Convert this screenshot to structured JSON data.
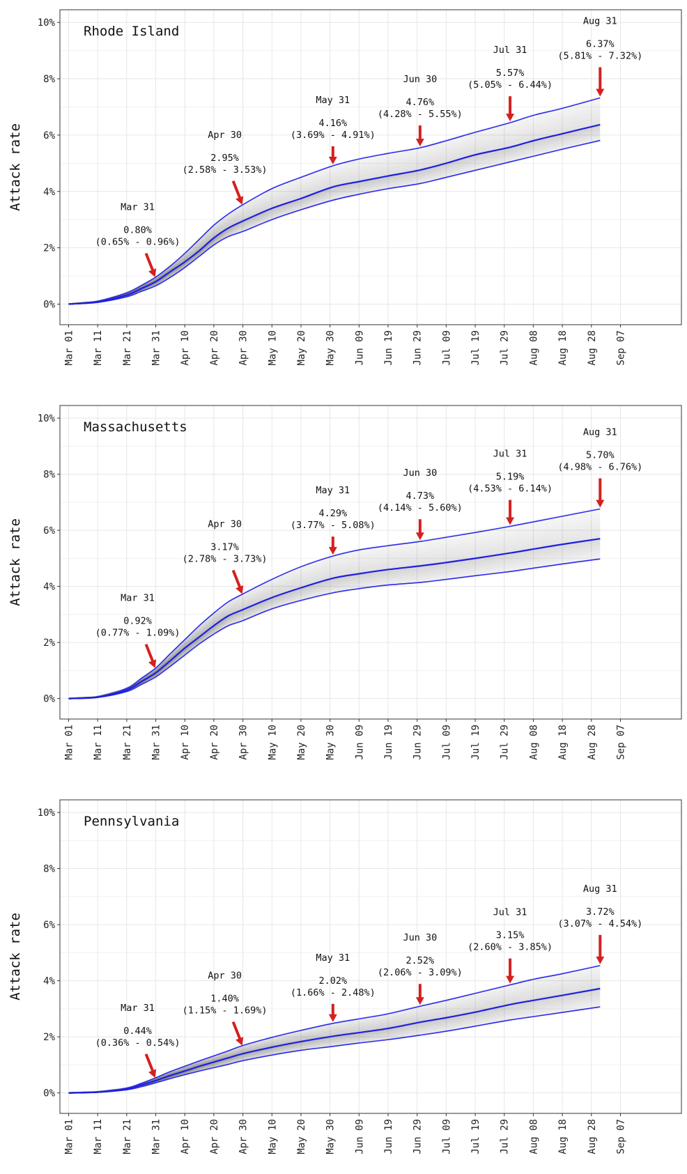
{
  "chart_data": [
    {
      "type": "line",
      "title": "Rhode Island",
      "ylabel": "Attack rate",
      "ylim": [
        0,
        10
      ],
      "y_ticks": [
        "0%",
        "2%",
        "4%",
        "6%",
        "8%",
        "10%"
      ],
      "x_ticks": [
        "Mar 01",
        "Mar 11",
        "Mar 21",
        "Mar 31",
        "Apr 10",
        "Apr 20",
        "Apr 30",
        "May 10",
        "May 20",
        "May 30",
        "Jun 09",
        "Jun 19",
        "Jun 29",
        "Jul 09",
        "Jul 19",
        "Jul 29",
        "Aug 08",
        "Aug 18",
        "Aug 28",
        "Sep 07"
      ],
      "x_days": [
        0,
        10,
        20,
        30,
        40,
        50,
        60,
        70,
        80,
        90,
        100,
        110,
        120,
        130,
        140,
        150,
        160,
        170,
        180,
        190
      ],
      "xlim": [
        -3,
        211
      ],
      "grid": true,
      "series": [
        {
          "x": [
            0,
            10,
            20,
            25,
            30,
            35,
            40,
            45,
            50,
            55,
            60,
            70,
            80,
            91,
            100,
            110,
            121,
            130,
            140,
            152,
            160,
            170,
            183
          ],
          "values": [
            0,
            0.08,
            0.32,
            0.55,
            0.8,
            1.15,
            1.5,
            1.9,
            2.35,
            2.7,
            2.95,
            3.4,
            3.75,
            4.16,
            4.35,
            4.55,
            4.76,
            5.0,
            5.3,
            5.57,
            5.8,
            6.05,
            6.37
          ]
        },
        {
          "x": [
            0,
            10,
            20,
            25,
            30,
            35,
            40,
            45,
            50,
            55,
            60,
            70,
            80,
            91,
            100,
            110,
            121,
            130,
            140,
            152,
            160,
            170,
            183
          ],
          "values": [
            0,
            0.06,
            0.26,
            0.45,
            0.65,
            0.95,
            1.3,
            1.7,
            2.1,
            2.4,
            2.58,
            3.0,
            3.35,
            3.69,
            3.9,
            4.1,
            4.28,
            4.5,
            4.75,
            5.05,
            5.25,
            5.5,
            5.81
          ]
        },
        {
          "x": [
            0,
            10,
            20,
            25,
            30,
            35,
            40,
            45,
            50,
            55,
            60,
            70,
            80,
            91,
            100,
            110,
            121,
            130,
            140,
            152,
            160,
            170,
            183
          ],
          "values": [
            0,
            0.1,
            0.4,
            0.66,
            0.96,
            1.35,
            1.8,
            2.3,
            2.8,
            3.2,
            3.53,
            4.1,
            4.5,
            4.91,
            5.15,
            5.35,
            5.55,
            5.8,
            6.1,
            6.44,
            6.7,
            6.95,
            7.32
          ]
        }
      ],
      "annotations": [
        {
          "date": "Mar 31",
          "x": 30,
          "value": "0.80%",
          "ci": "(0.65% - 0.96%)"
        },
        {
          "date": "Apr 30",
          "x": 60,
          "value": "2.95%",
          "ci": "(2.58% - 3.53%)"
        },
        {
          "date": "May 31",
          "x": 91,
          "value": "4.16%",
          "ci": "(3.69% - 4.91%)"
        },
        {
          "date": "Jun 30",
          "x": 121,
          "value": "4.76%",
          "ci": "(4.28% - 5.55%)"
        },
        {
          "date": "Jul 31",
          "x": 152,
          "value": "5.57%",
          "ci": "(5.05% - 6.44%)"
        },
        {
          "date": "Aug 31",
          "x": 183,
          "value": "6.37%",
          "ci": "(5.81% - 7.32%)"
        }
      ]
    },
    {
      "type": "line",
      "title": "Massachusetts",
      "ylabel": "Attack rate",
      "ylim": [
        0,
        10
      ],
      "y_ticks": [
        "0%",
        "2%",
        "4%",
        "6%",
        "8%",
        "10%"
      ],
      "x_ticks": [
        "Mar 01",
        "Mar 11",
        "Mar 21",
        "Mar 31",
        "Apr 10",
        "Apr 20",
        "Apr 30",
        "May 10",
        "May 20",
        "May 30",
        "Jun 09",
        "Jun 19",
        "Jun 29",
        "Jul 09",
        "Jul 19",
        "Jul 29",
        "Aug 08",
        "Aug 18",
        "Aug 28",
        "Sep 07"
      ],
      "x_days": [
        0,
        10,
        20,
        30,
        40,
        50,
        60,
        70,
        80,
        90,
        100,
        110,
        120,
        130,
        140,
        150,
        160,
        170,
        180,
        190
      ],
      "xlim": [
        -3,
        211
      ],
      "grid": true,
      "series": [
        {
          "x": [
            0,
            10,
            20,
            25,
            30,
            35,
            40,
            45,
            50,
            55,
            60,
            70,
            80,
            91,
            100,
            110,
            121,
            130,
            140,
            152,
            160,
            170,
            183
          ],
          "values": [
            0,
            0.05,
            0.3,
            0.6,
            0.92,
            1.35,
            1.8,
            2.2,
            2.6,
            2.95,
            3.17,
            3.6,
            3.95,
            4.29,
            4.45,
            4.6,
            4.73,
            4.85,
            5.0,
            5.19,
            5.33,
            5.5,
            5.7
          ]
        },
        {
          "x": [
            0,
            10,
            20,
            25,
            30,
            35,
            40,
            45,
            50,
            55,
            60,
            70,
            80,
            91,
            100,
            110,
            121,
            130,
            140,
            152,
            160,
            170,
            183
          ],
          "values": [
            0,
            0.04,
            0.25,
            0.5,
            0.77,
            1.15,
            1.55,
            1.95,
            2.3,
            2.6,
            2.78,
            3.2,
            3.5,
            3.77,
            3.92,
            4.05,
            4.14,
            4.25,
            4.38,
            4.53,
            4.65,
            4.8,
            4.98
          ]
        },
        {
          "x": [
            0,
            10,
            20,
            25,
            30,
            35,
            40,
            45,
            50,
            55,
            60,
            70,
            80,
            91,
            100,
            110,
            121,
            130,
            140,
            152,
            160,
            170,
            183
          ],
          "values": [
            0,
            0.06,
            0.36,
            0.72,
            1.09,
            1.6,
            2.1,
            2.6,
            3.05,
            3.45,
            3.73,
            4.25,
            4.7,
            5.08,
            5.3,
            5.45,
            5.6,
            5.75,
            5.92,
            6.14,
            6.3,
            6.5,
            6.76
          ]
        }
      ],
      "annotations": [
        {
          "date": "Mar 31",
          "x": 30,
          "value": "0.92%",
          "ci": "(0.77% - 1.09%)"
        },
        {
          "date": "Apr 30",
          "x": 60,
          "value": "3.17%",
          "ci": "(2.78% - 3.73%)"
        },
        {
          "date": "May 31",
          "x": 91,
          "value": "4.29%",
          "ci": "(3.77% - 5.08%)"
        },
        {
          "date": "Jun 30",
          "x": 121,
          "value": "4.73%",
          "ci": "(4.14% - 5.60%)"
        },
        {
          "date": "Jul 31",
          "x": 152,
          "value": "5.19%",
          "ci": "(4.53% - 6.14%)"
        },
        {
          "date": "Aug 31",
          "x": 183,
          "value": "5.70%",
          "ci": "(4.98% - 6.76%)"
        }
      ]
    },
    {
      "type": "line",
      "title": "Pennsylvania",
      "ylabel": "Attack rate",
      "ylim": [
        0,
        10
      ],
      "y_ticks": [
        "0%",
        "2%",
        "4%",
        "6%",
        "8%",
        "10%"
      ],
      "x_ticks": [
        "Mar 01",
        "Mar 11",
        "Mar 21",
        "Mar 31",
        "Apr 10",
        "Apr 20",
        "Apr 30",
        "May 10",
        "May 20",
        "May 30",
        "Jun 09",
        "Jun 19",
        "Jun 29",
        "Jul 09",
        "Jul 19",
        "Jul 29",
        "Aug 08",
        "Aug 18",
        "Aug 28",
        "Sep 07"
      ],
      "x_days": [
        0,
        10,
        20,
        30,
        40,
        50,
        60,
        70,
        80,
        90,
        100,
        110,
        120,
        130,
        140,
        150,
        160,
        170,
        180,
        190
      ],
      "xlim": [
        -3,
        211
      ],
      "grid": true,
      "series": [
        {
          "x": [
            0,
            10,
            20,
            25,
            30,
            35,
            40,
            45,
            50,
            55,
            60,
            70,
            80,
            91,
            100,
            110,
            121,
            130,
            140,
            152,
            160,
            170,
            183
          ],
          "values": [
            0,
            0.03,
            0.14,
            0.28,
            0.44,
            0.62,
            0.78,
            0.95,
            1.1,
            1.25,
            1.4,
            1.63,
            1.83,
            2.02,
            2.15,
            2.3,
            2.52,
            2.68,
            2.88,
            3.15,
            3.3,
            3.48,
            3.72
          ]
        },
        {
          "x": [
            0,
            10,
            20,
            25,
            30,
            35,
            40,
            45,
            50,
            55,
            60,
            70,
            80,
            91,
            100,
            110,
            121,
            130,
            140,
            152,
            160,
            170,
            183
          ],
          "values": [
            0,
            0.02,
            0.11,
            0.22,
            0.36,
            0.51,
            0.65,
            0.78,
            0.9,
            1.02,
            1.15,
            1.35,
            1.52,
            1.66,
            1.78,
            1.9,
            2.06,
            2.2,
            2.38,
            2.6,
            2.72,
            2.87,
            3.07
          ]
        },
        {
          "x": [
            0,
            10,
            20,
            25,
            30,
            35,
            40,
            45,
            50,
            55,
            60,
            70,
            80,
            91,
            100,
            110,
            121,
            130,
            140,
            152,
            160,
            170,
            183
          ],
          "values": [
            0,
            0.04,
            0.17,
            0.34,
            0.54,
            0.76,
            0.95,
            1.14,
            1.32,
            1.5,
            1.69,
            1.98,
            2.23,
            2.48,
            2.64,
            2.82,
            3.09,
            3.3,
            3.55,
            3.85,
            4.05,
            4.25,
            4.54
          ]
        }
      ],
      "annotations": [
        {
          "date": "Mar 31",
          "x": 30,
          "value": "0.44%",
          "ci": "(0.36% - 0.54%)"
        },
        {
          "date": "Apr 30",
          "x": 60,
          "value": "1.40%",
          "ci": "(1.15% - 1.69%)"
        },
        {
          "date": "May 31",
          "x": 91,
          "value": "2.02%",
          "ci": "(1.66% - 2.48%)"
        },
        {
          "date": "Jun 30",
          "x": 121,
          "value": "2.52%",
          "ci": "(2.06% - 3.09%)"
        },
        {
          "date": "Jul 31",
          "x": 152,
          "value": "3.15%",
          "ci": "(2.60% - 3.85%)"
        },
        {
          "date": "Aug 31",
          "x": 183,
          "value": "3.72%",
          "ci": "(3.07% - 4.54%)"
        }
      ]
    }
  ],
  "colors": {
    "median_line": "#1f1fe0",
    "interval_line": "#2a2af0",
    "ensemble": "#555555",
    "arrow": "#d42020",
    "grid": "#e6e6e6",
    "panel_border": "#333333"
  }
}
